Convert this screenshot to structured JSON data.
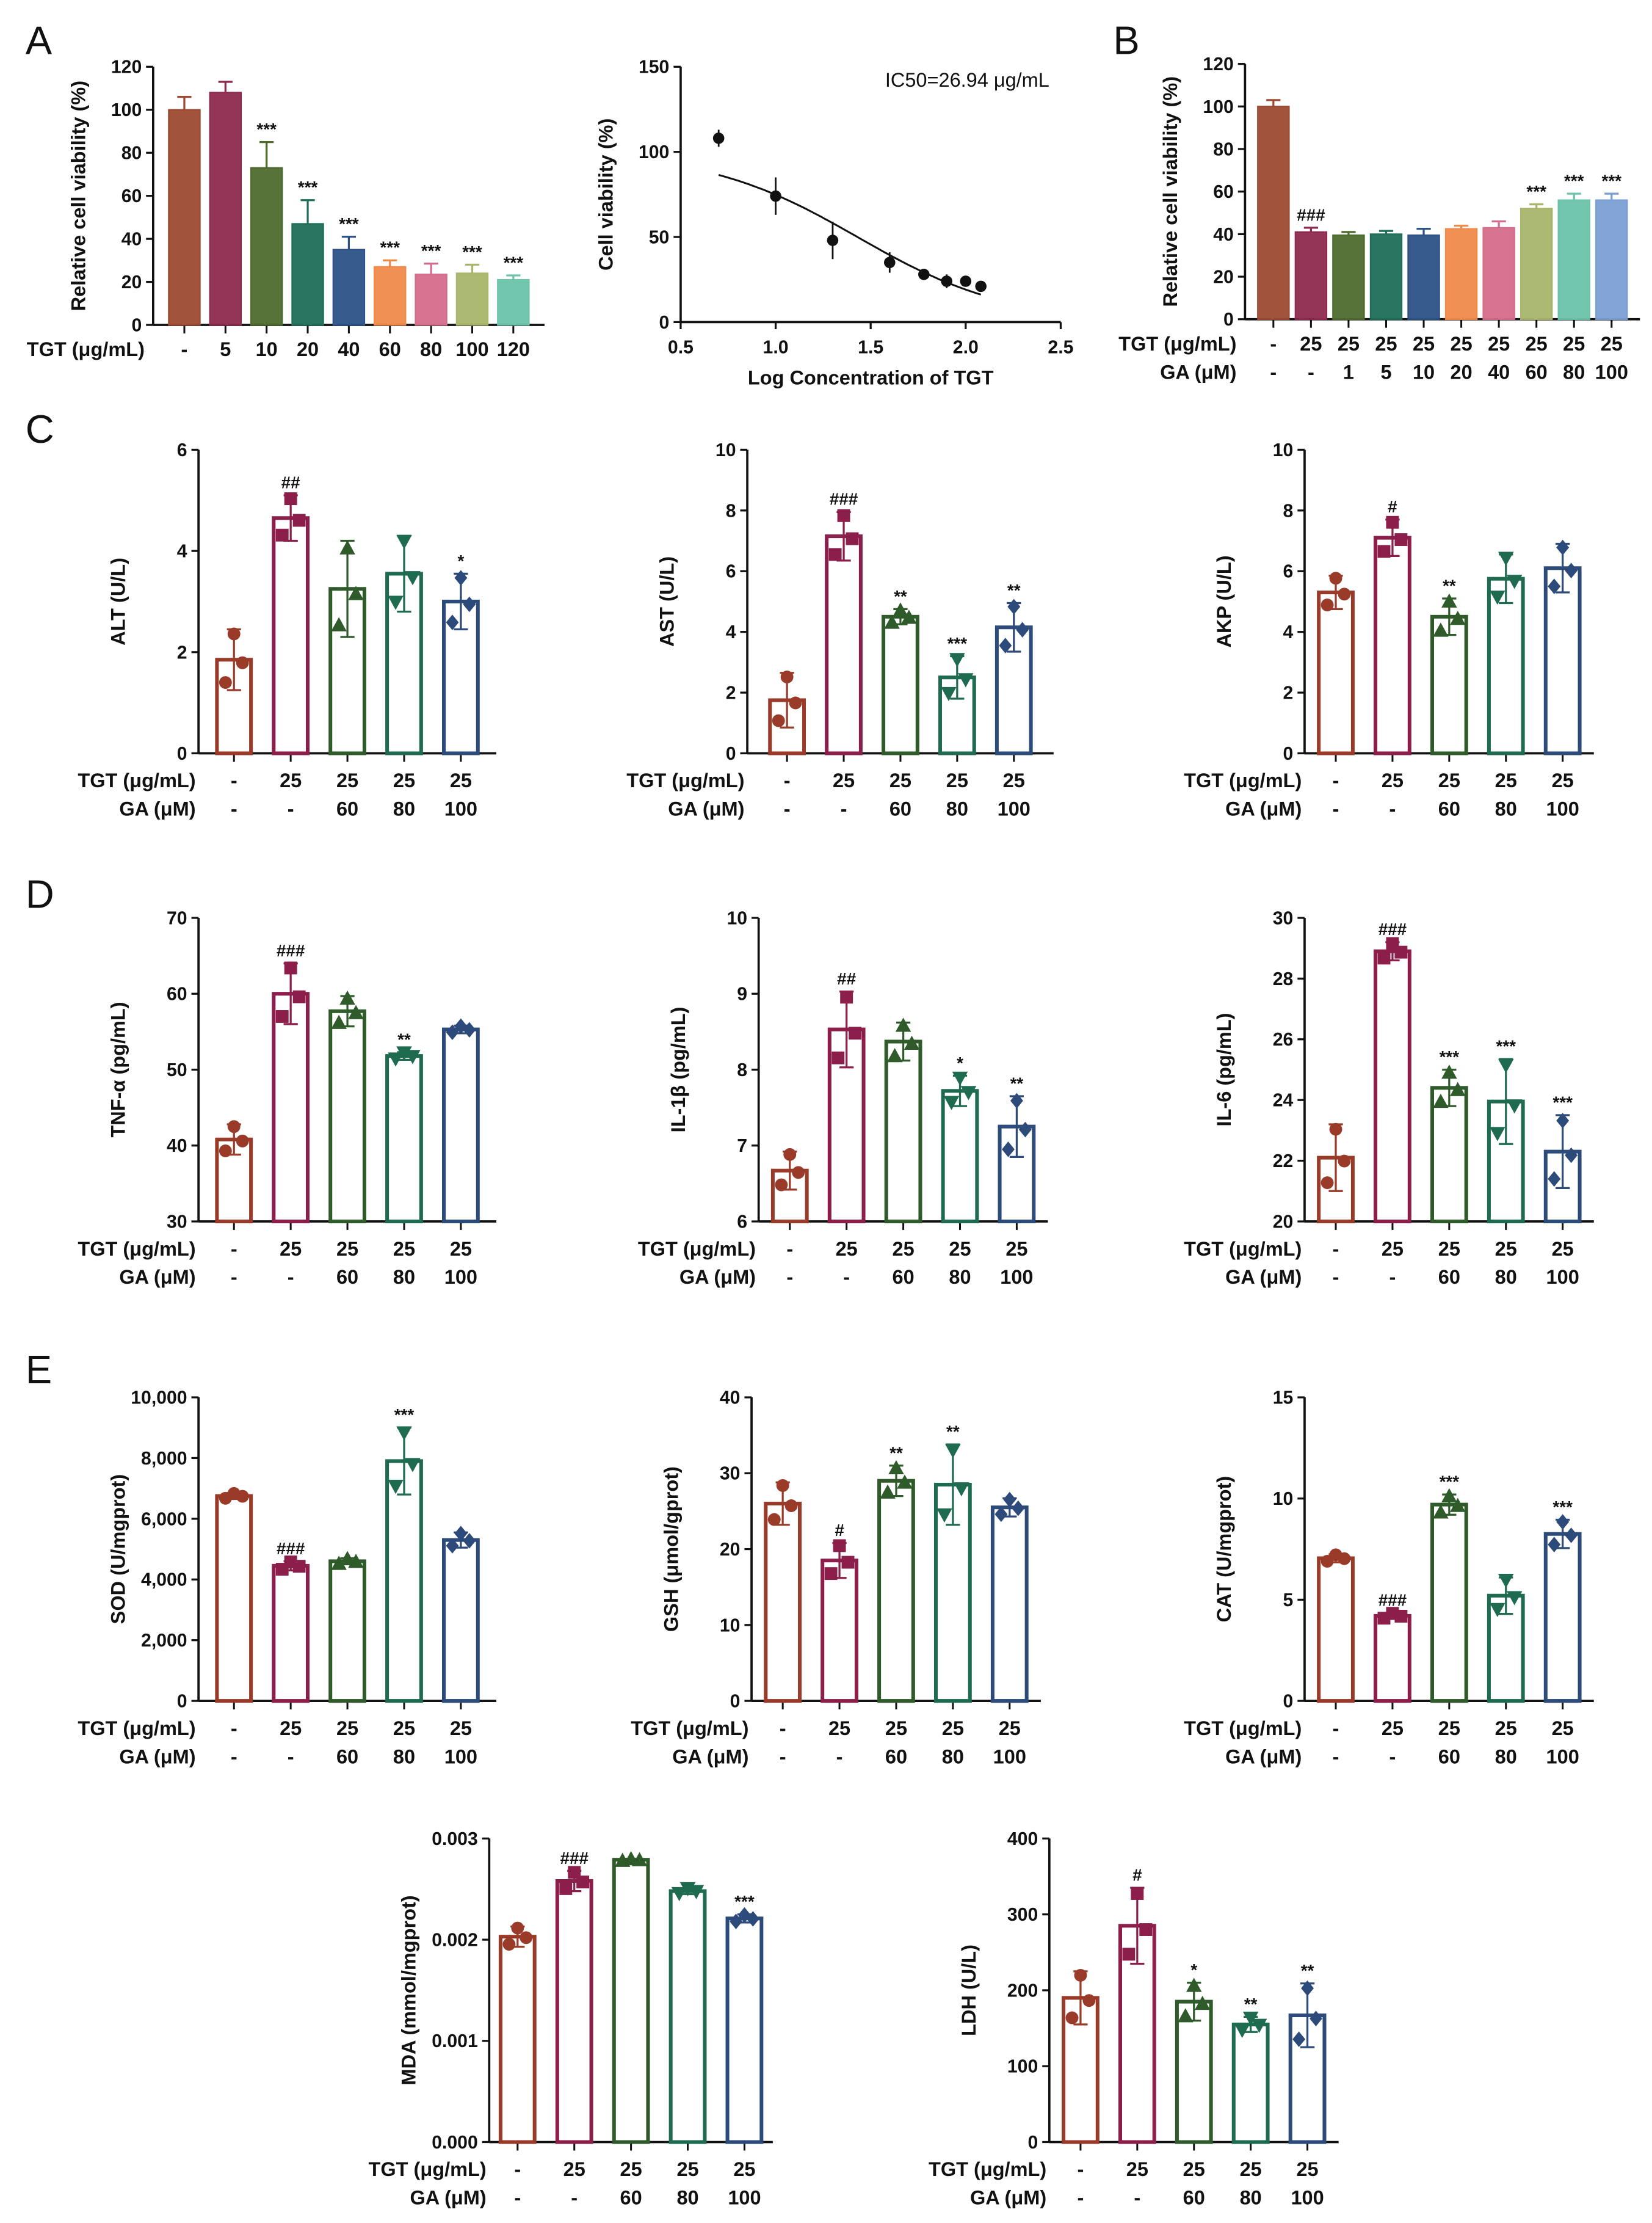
{
  "panels": [
    "A",
    "B",
    "C",
    "D",
    "E"
  ],
  "group_colors": [
    "#9a3b2a",
    "#8b1e4a",
    "#2f5a2a",
    "#1e6b50",
    "#2c4a7a"
  ],
  "chart_data": [
    {
      "panel": "A",
      "type": "bar",
      "ylabel": "Relative cell viability (%)",
      "ylim": [
        0,
        120
      ],
      "yticks": [
        "0",
        "20",
        "40",
        "60",
        "80",
        "100",
        "120"
      ],
      "rows": [
        {
          "label": "TGT (μg/mL)",
          "values": [
            "-",
            "5",
            "10",
            "20",
            "40",
            "60",
            "80",
            "100",
            "120"
          ]
        }
      ],
      "values": [
        100,
        108,
        73,
        47,
        35,
        27,
        23.5,
        24,
        21
      ],
      "sd": [
        6,
        5,
        12,
        11,
        6,
        3,
        5,
        4,
        2
      ],
      "sig": [
        "",
        "",
        "***",
        "***",
        "***",
        "***",
        "***",
        "***",
        "***"
      ],
      "colors": [
        "#9c4a32",
        "#8e2a4e",
        "#4e6b2e",
        "#1f6e5a",
        "#2d5288",
        "#f08a4b",
        "#d46d8c",
        "#a8b56a",
        "#6cc3aa"
      ],
      "style": "filled"
    },
    {
      "panel": "A",
      "type": "scatter",
      "xlabel": "Log Concentration of TGT",
      "ylabel": "Cell viability (%)",
      "annotation": "IC50=26.94 μg/mL",
      "xlim": [
        0.5,
        2.5
      ],
      "ylim": [
        0,
        150
      ],
      "xticks": [
        "0.5",
        "1.0",
        "1.5",
        "2.0",
        "2.5"
      ],
      "yticks": [
        "0",
        "50",
        "100",
        "150"
      ],
      "x": [
        0.7,
        1.0,
        1.3,
        1.6,
        1.78,
        1.9,
        2.0,
        2.08
      ],
      "y": [
        108,
        74,
        48,
        35,
        28,
        24,
        24,
        21
      ],
      "sd": [
        5,
        11,
        11,
        6,
        1,
        4,
        3,
        1
      ],
      "fit": {
        "top": 100,
        "bottom": 0,
        "log_ic50": 1.43,
        "hill": -1.1
      }
    },
    {
      "panel": "B",
      "type": "bar",
      "ylabel": "Relative cell viability (%)",
      "ylim": [
        0,
        120
      ],
      "yticks": [
        "0",
        "20",
        "40",
        "60",
        "80",
        "100",
        "120"
      ],
      "rows": [
        {
          "label": "TGT (μg/mL)",
          "values": [
            "-",
            "25",
            "25",
            "25",
            "25",
            "25",
            "25",
            "25",
            "25",
            "25"
          ]
        },
        {
          "label": "GA (μM)",
          "values": [
            "-",
            "-",
            "1",
            "5",
            "10",
            "20",
            "40",
            "60",
            "80",
            "100"
          ]
        }
      ],
      "values": [
        100,
        41,
        39.5,
        40,
        39.5,
        42.5,
        43,
        52,
        56,
        56
      ],
      "sd": [
        3,
        2,
        1.5,
        1.5,
        3,
        1.5,
        3,
        2,
        3,
        3
      ],
      "sig": [
        "",
        "###",
        "",
        "",
        "",
        "",
        "",
        "***",
        "***",
        "***"
      ],
      "colors": [
        "#9c4a32",
        "#8e2a4e",
        "#4e6b2e",
        "#1f6e5a",
        "#2d5288",
        "#f08a4b",
        "#d46d8c",
        "#a8b56a",
        "#6cc3aa",
        "#7b9ed3"
      ],
      "style": "filled"
    },
    {
      "panel": "C",
      "type": "bar",
      "ylabel": "ALT (U/L)",
      "ylim": [
        0,
        6
      ],
      "yticks": [
        "0",
        "2",
        "4",
        "6"
      ],
      "values": [
        1.85,
        4.65,
        3.25,
        3.55,
        3.0
      ],
      "sd": [
        0.6,
        0.45,
        0.95,
        0.75,
        0.55
      ],
      "sig": [
        "",
        "##",
        "",
        "",
        "*"
      ]
    },
    {
      "panel": "C",
      "type": "bar",
      "ylabel": "AST (U/L)",
      "ylim": [
        0,
        10
      ],
      "yticks": [
        "0",
        "2",
        "4",
        "6",
        "8",
        "10"
      ],
      "values": [
        1.75,
        7.15,
        4.5,
        2.5,
        4.15
      ],
      "sd": [
        0.9,
        0.8,
        0.25,
        0.7,
        0.8
      ],
      "sig": [
        "",
        "###",
        "**",
        "***",
        "**"
      ]
    },
    {
      "panel": "C",
      "type": "bar",
      "ylabel": "AKP (U/L)",
      "ylim": [
        0,
        10
      ],
      "yticks": [
        "0",
        "2",
        "4",
        "6",
        "8",
        "10"
      ],
      "values": [
        5.3,
        7.1,
        4.5,
        5.75,
        6.1
      ],
      "sd": [
        0.55,
        0.6,
        0.6,
        0.8,
        0.8
      ],
      "sig": [
        "",
        "#",
        "**",
        "",
        ""
      ]
    },
    {
      "panel": "D",
      "type": "bar",
      "ylabel": "TNF-α (pg/mL)",
      "ylim": [
        30,
        70
      ],
      "yticks": [
        "30",
        "40",
        "50",
        "60",
        "70"
      ],
      "values": [
        40.8,
        60,
        57.7,
        51.8,
        55.3
      ],
      "sd": [
        2,
        4,
        2,
        0.5,
        0.5
      ],
      "sig": [
        "",
        "###",
        "",
        "**",
        ""
      ]
    },
    {
      "panel": "D",
      "type": "bar",
      "ylabel": "IL-1β (pg/mL)",
      "ylim": [
        6,
        10
      ],
      "yticks": [
        "6",
        "7",
        "8",
        "9",
        "10"
      ],
      "values": [
        6.67,
        8.53,
        8.37,
        7.72,
        7.25
      ],
      "sd": [
        0.25,
        0.5,
        0.25,
        0.2,
        0.4
      ],
      "sig": [
        "",
        "##",
        "",
        "*",
        "**"
      ]
    },
    {
      "panel": "D",
      "type": "bar",
      "ylabel": "IL-6 (pg/mL)",
      "ylim": [
        20,
        30
      ],
      "yticks": [
        "20",
        "22",
        "24",
        "26",
        "28",
        "30"
      ],
      "values": [
        22.1,
        28.9,
        24.4,
        23.95,
        22.3
      ],
      "sd": [
        1.1,
        0.3,
        0.6,
        1.4,
        1.2
      ],
      "sig": [
        "",
        "###",
        "***",
        "***",
        "***"
      ]
    },
    {
      "panel": "E",
      "type": "bar",
      "ylabel": "SOD (U/mgprot)",
      "ylim": [
        0,
        10000
      ],
      "yticks": [
        "0",
        "2,000",
        "4,000",
        "6,000",
        "8,000",
        "10,000"
      ],
      "values": [
        6750,
        4450,
        4600,
        7900,
        5300
      ],
      "sd": [
        100,
        150,
        100,
        1100,
        250
      ],
      "sig": [
        "",
        "###",
        "",
        "***",
        ""
      ]
    },
    {
      "panel": "E",
      "type": "bar",
      "ylabel": "GSH (μmol/gprot)",
      "ylim": [
        0,
        40
      ],
      "yticks": [
        "0",
        "10",
        "20",
        "30",
        "40"
      ],
      "values": [
        26,
        18.5,
        29,
        28.5,
        25.5
      ],
      "sd": [
        2.8,
        2.3,
        2,
        5.3,
        1.2
      ],
      "sig": [
        "",
        "#",
        "**",
        "**",
        ""
      ]
    },
    {
      "panel": "E",
      "type": "bar",
      "ylabel": "CAT (U/mgprot)",
      "ylim": [
        0,
        15
      ],
      "yticks": [
        "0",
        "5",
        "10",
        "15"
      ],
      "values": [
        7.05,
        4.2,
        9.7,
        5.2,
        8.25
      ],
      "sd": [
        0.2,
        0.15,
        0.5,
        0.9,
        0.7
      ],
      "sig": [
        "",
        "###",
        "***",
        "",
        "***"
      ]
    },
    {
      "panel": "E",
      "type": "bar",
      "ylabel": "MDA (mmol/mgprot)",
      "ylim": [
        0,
        0.003
      ],
      "yticks": [
        "0.000",
        "0.001",
        "0.002",
        "0.003"
      ],
      "values": [
        0.00203,
        0.00258,
        0.00279,
        0.00248,
        0.00221
      ],
      "sd": [
        0.0001,
        0.0001,
        1e-05,
        3e-05,
        4e-05
      ],
      "sig": [
        "",
        "###",
        "",
        "",
        "***"
      ]
    },
    {
      "panel": "E",
      "type": "bar",
      "ylabel": "LDH  (U/L)",
      "ylim": [
        0,
        400
      ],
      "yticks": [
        "0",
        "100",
        "200",
        "300",
        "400"
      ],
      "values": [
        190,
        285,
        185,
        155,
        167
      ],
      "sd": [
        35,
        50,
        25,
        10,
        42
      ],
      "sig": [
        "",
        "#",
        "*",
        "**",
        "**"
      ]
    }
  ],
  "group_rows": [
    {
      "label": "TGT (μg/mL)",
      "values": [
        "-",
        "25",
        "25",
        "25",
        "25"
      ]
    },
    {
      "label": "GA (μM)",
      "values": [
        "-",
        "-",
        "60",
        "80",
        "100"
      ]
    }
  ]
}
